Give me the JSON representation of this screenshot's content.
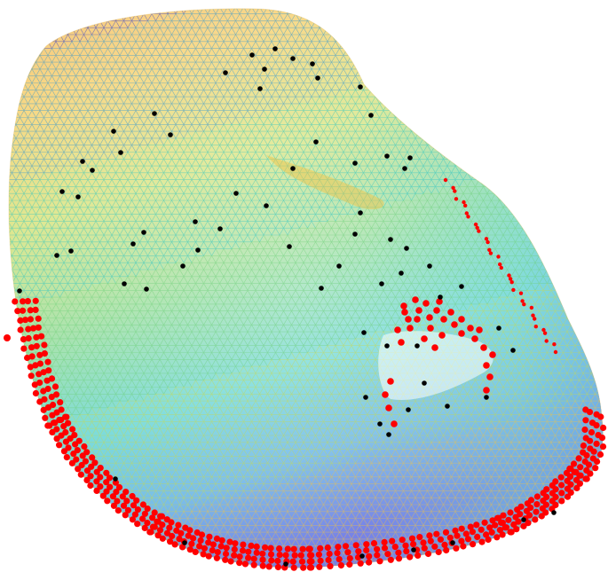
{
  "figure": {
    "background_color": "#ffffff",
    "surface_colormap": [
      "#1a2fd6",
      "#1f8fd8",
      "#22c2c2",
      "#6ccf76",
      "#c9d84b",
      "#f3c23f",
      "#f0a63c"
    ],
    "mesh_line_opacity": 0.55,
    "marker_colors": {
      "boundary": "#ff0000",
      "landmark": "#000000"
    },
    "icons": {
      "boundary_marker": "red-dot-marker",
      "landmark_marker": "black-dot-marker"
    }
  }
}
